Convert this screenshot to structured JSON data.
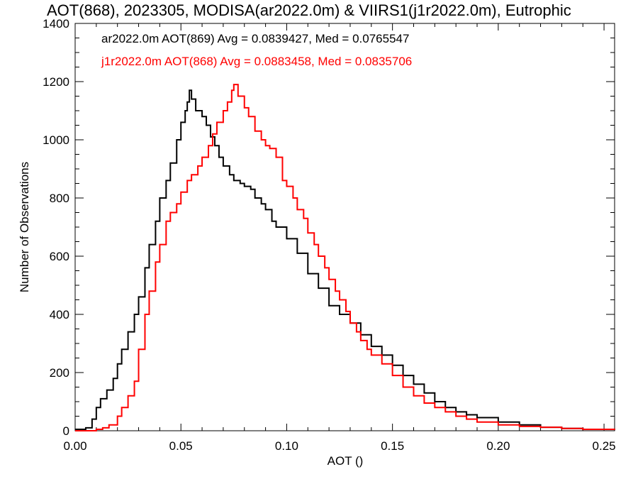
{
  "chart_data": {
    "type": "line",
    "title": "AOT(868), 2023305, MODISA(ar2022.0m) & VIIRS1(j1r2022.0m), Eutrophic",
    "xlabel": "AOT ()",
    "ylabel": "Number of Observations",
    "xlim": [
      0.0,
      0.255
    ],
    "ylim": [
      0,
      1400
    ],
    "xticks": [
      "0.00",
      "0.05",
      "0.10",
      "0.15",
      "0.20",
      "0.25"
    ],
    "yticks": [
      "0",
      "200",
      "400",
      "600",
      "800",
      "1000",
      "1200",
      "1400"
    ],
    "grid": false,
    "legend": [
      "ar2022.0m AOT(869) Avg = 0.0839427, Med = 0.0765547",
      "j1r2022.0m AOT(868) Avg = 0.0883458, Med = 0.0835706"
    ],
    "series": [
      {
        "name": "ar2022.0m AOT(869)",
        "color": "#000000",
        "points": [
          [
            0,
            5
          ],
          [
            0.005,
            10
          ],
          [
            0.008,
            40
          ],
          [
            0.01,
            80
          ],
          [
            0.012,
            110
          ],
          [
            0.015,
            140
          ],
          [
            0.018,
            180
          ],
          [
            0.02,
            230
          ],
          [
            0.022,
            280
          ],
          [
            0.025,
            340
          ],
          [
            0.028,
            400
          ],
          [
            0.03,
            460
          ],
          [
            0.033,
            560
          ],
          [
            0.035,
            640
          ],
          [
            0.038,
            720
          ],
          [
            0.04,
            800
          ],
          [
            0.043,
            860
          ],
          [
            0.045,
            920
          ],
          [
            0.048,
            1000
          ],
          [
            0.05,
            1060
          ],
          [
            0.052,
            1100
          ],
          [
            0.053,
            1130
          ],
          [
            0.054,
            1170
          ],
          [
            0.055,
            1140
          ],
          [
            0.057,
            1100
          ],
          [
            0.06,
            1080
          ],
          [
            0.062,
            1050
          ],
          [
            0.064,
            1010
          ],
          [
            0.066,
            980
          ],
          [
            0.068,
            940
          ],
          [
            0.07,
            910
          ],
          [
            0.073,
            880
          ],
          [
            0.075,
            860
          ],
          [
            0.078,
            850
          ],
          [
            0.08,
            840
          ],
          [
            0.083,
            830
          ],
          [
            0.085,
            800
          ],
          [
            0.088,
            780
          ],
          [
            0.09,
            760
          ],
          [
            0.093,
            720
          ],
          [
            0.095,
            700
          ],
          [
            0.1,
            660
          ],
          [
            0.105,
            610
          ],
          [
            0.11,
            540
          ],
          [
            0.115,
            490
          ],
          [
            0.12,
            430
          ],
          [
            0.125,
            400
          ],
          [
            0.13,
            370
          ],
          [
            0.135,
            330
          ],
          [
            0.14,
            290
          ],
          [
            0.145,
            260
          ],
          [
            0.15,
            225
          ],
          [
            0.155,
            190
          ],
          [
            0.16,
            160
          ],
          [
            0.165,
            130
          ],
          [
            0.17,
            100
          ],
          [
            0.175,
            80
          ],
          [
            0.18,
            65
          ],
          [
            0.185,
            55
          ],
          [
            0.19,
            45
          ],
          [
            0.2,
            30
          ],
          [
            0.21,
            20
          ],
          [
            0.22,
            12
          ],
          [
            0.23,
            8
          ],
          [
            0.24,
            5
          ],
          [
            0.255,
            2
          ]
        ]
      },
      {
        "name": "j1r2022.0m AOT(868)",
        "color": "#ff0000",
        "points": [
          [
            0,
            0
          ],
          [
            0.01,
            5
          ],
          [
            0.013,
            10
          ],
          [
            0.016,
            20
          ],
          [
            0.02,
            50
          ],
          [
            0.022,
            80
          ],
          [
            0.025,
            120
          ],
          [
            0.028,
            170
          ],
          [
            0.03,
            280
          ],
          [
            0.033,
            400
          ],
          [
            0.035,
            480
          ],
          [
            0.038,
            580
          ],
          [
            0.04,
            640
          ],
          [
            0.043,
            720
          ],
          [
            0.045,
            750
          ],
          [
            0.048,
            780
          ],
          [
            0.05,
            820
          ],
          [
            0.053,
            860
          ],
          [
            0.055,
            880
          ],
          [
            0.058,
            910
          ],
          [
            0.06,
            940
          ],
          [
            0.063,
            980
          ],
          [
            0.065,
            1020
          ],
          [
            0.067,
            1060
          ],
          [
            0.07,
            1100
          ],
          [
            0.072,
            1130
          ],
          [
            0.074,
            1170
          ],
          [
            0.075,
            1190
          ],
          [
            0.077,
            1150
          ],
          [
            0.08,
            1110
          ],
          [
            0.082,
            1080
          ],
          [
            0.085,
            1030
          ],
          [
            0.088,
            1000
          ],
          [
            0.09,
            980
          ],
          [
            0.092,
            970
          ],
          [
            0.095,
            940
          ],
          [
            0.098,
            860
          ],
          [
            0.1,
            840
          ],
          [
            0.103,
            800
          ],
          [
            0.105,
            760
          ],
          [
            0.108,
            730
          ],
          [
            0.11,
            680
          ],
          [
            0.113,
            640
          ],
          [
            0.115,
            600
          ],
          [
            0.118,
            560
          ],
          [
            0.12,
            520
          ],
          [
            0.123,
            480
          ],
          [
            0.125,
            450
          ],
          [
            0.128,
            410
          ],
          [
            0.13,
            370
          ],
          [
            0.133,
            340
          ],
          [
            0.135,
            310
          ],
          [
            0.138,
            280
          ],
          [
            0.14,
            260
          ],
          [
            0.145,
            230
          ],
          [
            0.15,
            190
          ],
          [
            0.155,
            150
          ],
          [
            0.16,
            120
          ],
          [
            0.165,
            95
          ],
          [
            0.17,
            80
          ],
          [
            0.175,
            65
          ],
          [
            0.18,
            50
          ],
          [
            0.185,
            40
          ],
          [
            0.19,
            30
          ],
          [
            0.2,
            20
          ],
          [
            0.21,
            15
          ],
          [
            0.22,
            12
          ],
          [
            0.23,
            8
          ],
          [
            0.24,
            5
          ],
          [
            0.255,
            3
          ]
        ]
      }
    ]
  }
}
